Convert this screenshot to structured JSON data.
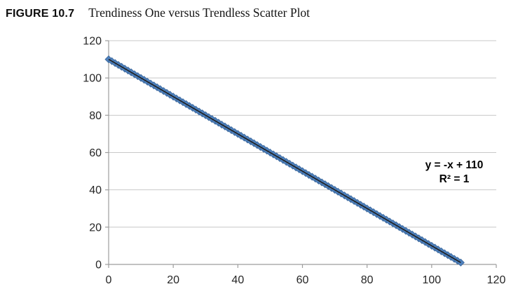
{
  "figure": {
    "label": "FIGURE 10.7",
    "title": "Trendiness One versus Trendless Scatter Plot"
  },
  "chart_data": {
    "type": "scatter",
    "title": "",
    "xlabel": "",
    "ylabel": "",
    "xlim": [
      0,
      120
    ],
    "ylim": [
      0,
      120
    ],
    "xticks": [
      0,
      20,
      40,
      60,
      80,
      100,
      120
    ],
    "yticks": [
      0,
      20,
      40,
      60,
      80,
      100,
      120
    ],
    "grid": "horizontal",
    "legend": "none",
    "series": [
      {
        "marker": "diamond",
        "marker_color": "#4f81bd",
        "marker_edge_color": "#3a679c",
        "points_spec": {
          "x_from": 0,
          "x_to": 109,
          "step": 1,
          "slope": -1,
          "intercept": 110,
          "y_formula": "y = -x + 110"
        }
      }
    ],
    "trendline": {
      "slope": -1,
      "intercept": 110,
      "x_from": 0,
      "x_to": 109,
      "color": "#1f1f1f"
    },
    "annotation": {
      "lines": [
        "y = -x + 110",
        "R² = 1"
      ]
    },
    "colors": {
      "gridline": "#c8c8c8",
      "axis": "#9d9d9d",
      "tick_label": "#262626",
      "annotation_text": "#000000"
    }
  }
}
